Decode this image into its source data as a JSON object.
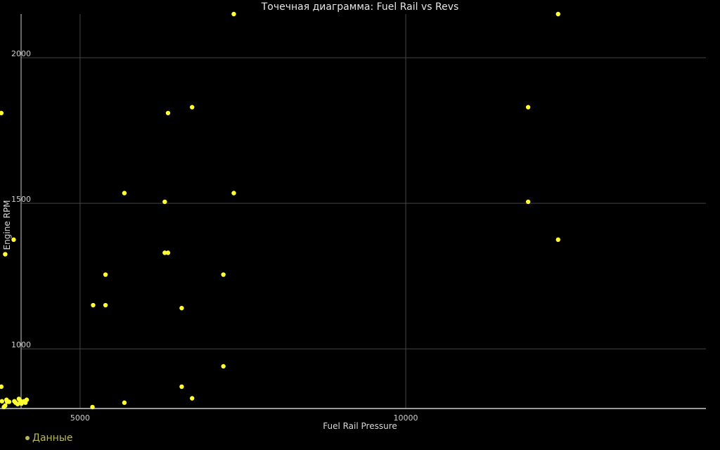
{
  "chart_data": {
    "type": "scatter",
    "title": "Точечная диаграмма: Fuel Rail vs Revs",
    "xlabel": "Fuel Rail Pressure",
    "ylabel": "Engine RPM",
    "xlim": [
      3770,
      14610
    ],
    "ylim": [
      795,
      2150
    ],
    "xticks": [
      5000,
      10000
    ],
    "yticks": [
      1000,
      1500,
      2000
    ],
    "grid": true,
    "legend_position": "bottom-left",
    "colors": {
      "background": "#000000",
      "points": "#ffff33",
      "grid": "#444444",
      "axis": "#cccccc"
    },
    "series": [
      {
        "name": "Данные",
        "points": [
          [
            3790,
            1810
          ],
          [
            3850,
            1325
          ],
          [
            3980,
            1375
          ],
          [
            3790,
            870
          ],
          [
            3800,
            820
          ],
          [
            3830,
            800
          ],
          [
            3850,
            805
          ],
          [
            3870,
            825
          ],
          [
            3880,
            818
          ],
          [
            3910,
            818
          ],
          [
            3990,
            820
          ],
          [
            4010,
            815
          ],
          [
            4040,
            810
          ],
          [
            4060,
            828
          ],
          [
            4080,
            822
          ],
          [
            4100,
            812
          ],
          [
            4120,
            818
          ],
          [
            4140,
            820
          ],
          [
            4160,
            815
          ],
          [
            4180,
            825
          ],
          [
            5200,
            1150
          ],
          [
            5190,
            800
          ],
          [
            5390,
            1255
          ],
          [
            5390,
            1150
          ],
          [
            5680,
            1535
          ],
          [
            5680,
            815
          ],
          [
            6300,
            1505
          ],
          [
            6300,
            1330
          ],
          [
            6350,
            1330
          ],
          [
            6350,
            1810
          ],
          [
            6560,
            1140
          ],
          [
            6560,
            870
          ],
          [
            6720,
            1830
          ],
          [
            6720,
            830
          ],
          [
            7200,
            1255
          ],
          [
            7200,
            940
          ],
          [
            7360,
            2150
          ],
          [
            7360,
            1535
          ],
          [
            11880,
            1830
          ],
          [
            11880,
            1505
          ],
          [
            12340,
            2150
          ],
          [
            12340,
            1375
          ]
        ]
      }
    ]
  }
}
